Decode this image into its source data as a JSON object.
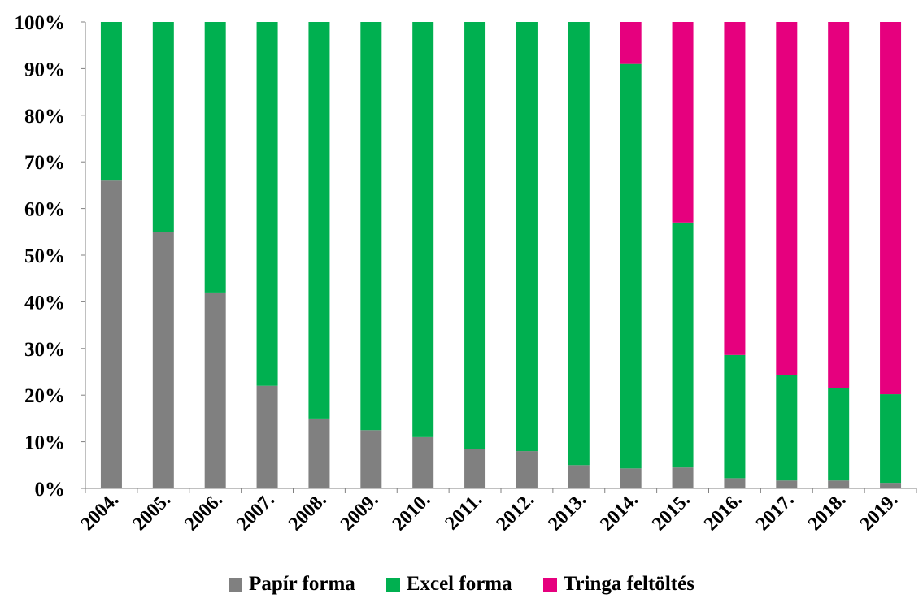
{
  "chart_data": {
    "type": "bar",
    "stacked": true,
    "percent": true,
    "categories": [
      "2004.",
      "2005.",
      "2006.",
      "2007.",
      "2008.",
      "2009.",
      "2010.",
      "2011.",
      "2012.",
      "2013.",
      "2014.",
      "2015.",
      "2016.",
      "2017.",
      "2018.",
      "2019."
    ],
    "series": [
      {
        "name": "Papír forma",
        "color": "#808080",
        "values": [
          66,
          55,
          42,
          22,
          15,
          12.5,
          11,
          8.5,
          8,
          5,
          4.3,
          4.5,
          2.2,
          1.7,
          1.7,
          1.2
        ]
      },
      {
        "name": "Excel forma",
        "color": "#00b050",
        "values": [
          34,
          45,
          58,
          78,
          85,
          87.5,
          89,
          91.5,
          92,
          95,
          86.7,
          52.5,
          26.4,
          22.6,
          19.8,
          19
        ]
      },
      {
        "name": "Tringa feltöltés",
        "color": "#e6007e",
        "values": [
          0,
          0,
          0,
          0,
          0,
          0,
          0,
          0,
          0,
          0,
          9,
          43,
          71.4,
          75.7,
          78.5,
          79.8
        ]
      }
    ],
    "yticks": [
      "0%",
      "10%",
      "20%",
      "30%",
      "40%",
      "50%",
      "60%",
      "70%",
      "80%",
      "90%",
      "100%"
    ],
    "ylim": [
      0,
      100
    ],
    "grid": false,
    "legend_position": "bottom",
    "title": "",
    "xlabel": "",
    "ylabel": ""
  }
}
